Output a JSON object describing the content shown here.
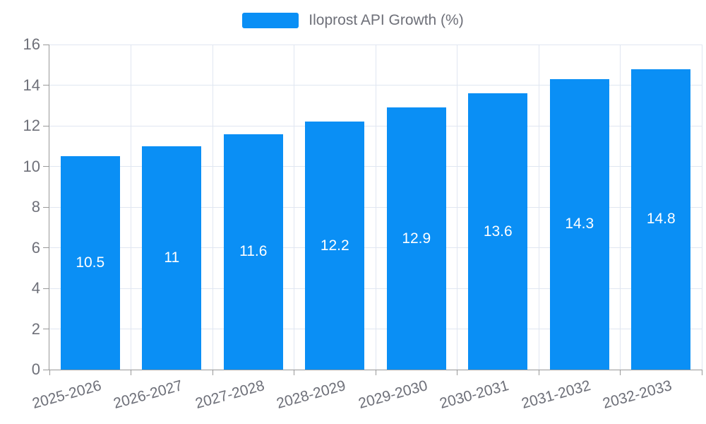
{
  "colors": {
    "bar": "#0A8FF5",
    "grid": "#E0E6F1",
    "axis": "#999999",
    "tick_label": "#6E7079",
    "value_label": "#FFFFFF",
    "background": "#FFFFFF"
  },
  "legend": {
    "label": "Iloprost API Growth (%)"
  },
  "chart_data": {
    "type": "bar",
    "title": "Iloprost API Growth (%)",
    "series_name": "Iloprost API Growth (%)",
    "categories": [
      "2025-2026",
      "2026-2027",
      "2027-2028",
      "2028-2029",
      "2029-2030",
      "2030-2031",
      "2031-2032",
      "2032-2033"
    ],
    "values": [
      10.5,
      11,
      11.6,
      12.2,
      12.9,
      13.6,
      14.3,
      14.8
    ],
    "value_labels": [
      "10.5",
      "11",
      "11.6",
      "12.2",
      "12.9",
      "13.6",
      "14.3",
      "14.8"
    ],
    "xlabel": "",
    "ylabel": "",
    "ylim": [
      0,
      16
    ],
    "yticks": [
      0,
      2,
      4,
      6,
      8,
      10,
      12,
      14,
      16
    ],
    "grid": true,
    "legend_position": "top-center",
    "value_label_position": "inside-center",
    "xtick_rotation_deg": -15.5
  }
}
